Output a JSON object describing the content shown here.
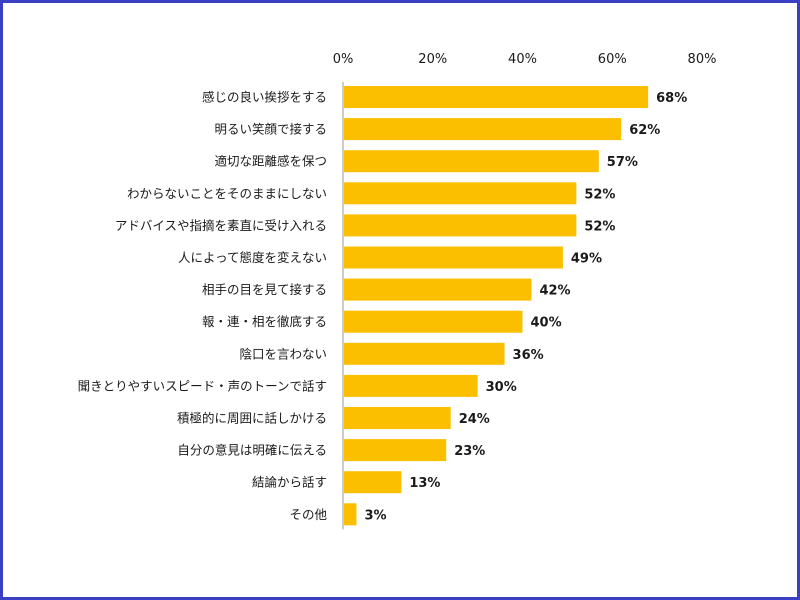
{
  "chart_data": {
    "type": "bar",
    "orientation": "horizontal",
    "title": "",
    "xlabel": "",
    "ylabel": "",
    "xlim": [
      0,
      80
    ],
    "xticks": [
      0,
      20,
      40,
      60,
      80
    ],
    "tick_labels": [
      "0%",
      "20%",
      "40%",
      "60%",
      "80%"
    ],
    "grid": false,
    "bar_color": "#fbbf00",
    "frame_color": "#3b3fc4",
    "categories": [
      "感じの良い挨拶をする",
      "明るい笑顔で接する",
      "適切な距離感を保つ",
      "わからないことをそのままにしない",
      "アドバイスや指摘を素直に受け入れる",
      "人によって態度を変えない",
      "相手の目を見て接する",
      "報・連・相を徹底する",
      "陰口を言わない",
      "聞きとりやすいスピード・声のトーンで話す",
      "積極的に周囲に話しかける",
      "自分の意見は明確に伝える",
      "結論から話す",
      "その他"
    ],
    "values": [
      68,
      62,
      57,
      52,
      52,
      49,
      42,
      40,
      36,
      30,
      24,
      23,
      13,
      3
    ],
    "value_labels": [
      "68%",
      "62%",
      "57%",
      "52%",
      "52%",
      "49%",
      "42%",
      "40%",
      "36%",
      "30%",
      "24%",
      "23%",
      "13%",
      "3%"
    ]
  }
}
